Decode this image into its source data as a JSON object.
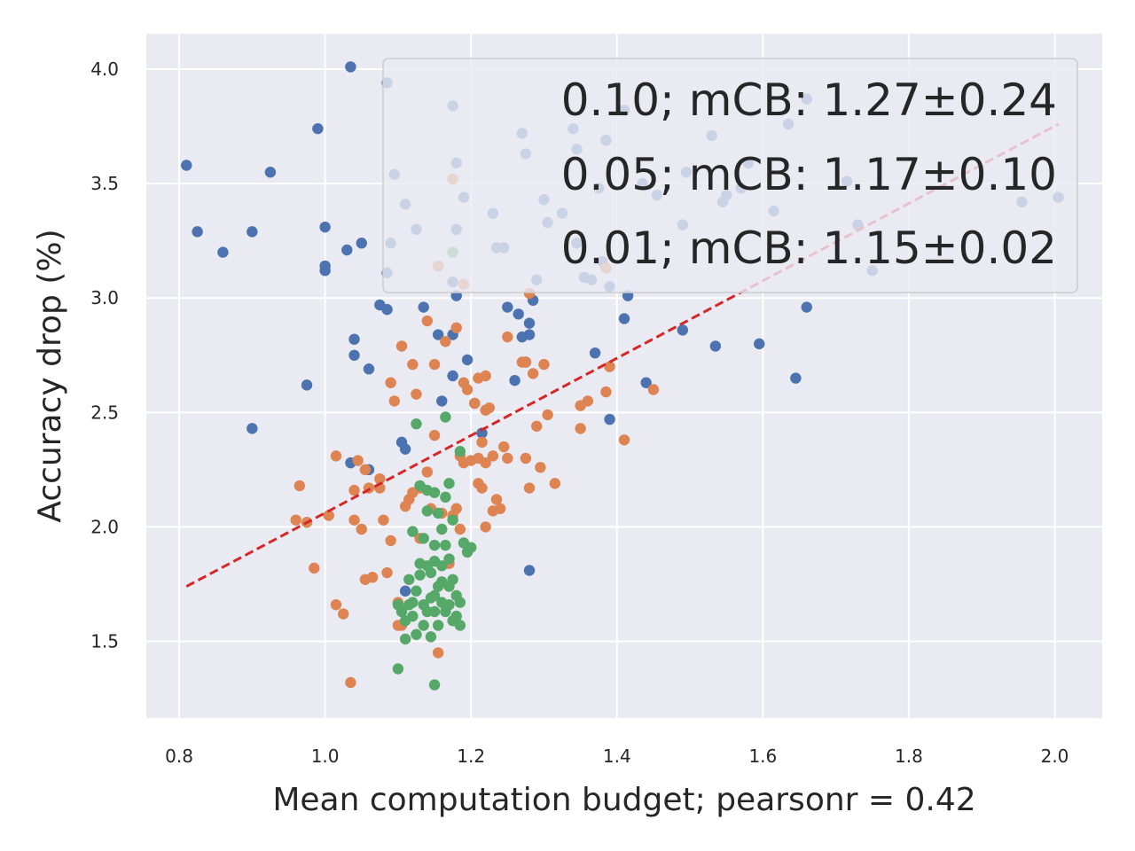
{
  "chart_data": {
    "type": "scatter",
    "xlabel": "Mean computation budget; pearsonr = 0.42",
    "ylabel": "Accuracy drop (%)",
    "xlim": [
      0.755,
      2.065
    ],
    "ylim": [
      1.165,
      4.155
    ],
    "x_ticks": [
      0.8,
      1.0,
      1.2,
      1.4,
      1.6,
      1.8,
      2.0
    ],
    "x_tick_labels": [
      "0.8",
      "1.0",
      "1.2",
      "1.4",
      "1.6",
      "1.8",
      "2.0"
    ],
    "y_ticks": [
      1.5,
      2.0,
      2.5,
      3.0,
      3.5,
      4.0
    ],
    "y_tick_labels": [
      "1.5",
      "2.0",
      "2.5",
      "3.0",
      "3.5",
      "4.0"
    ],
    "grid": true,
    "legend": {
      "placement": "top-right",
      "entries": [
        "0.10; mCB: 1.27±0.24",
        "0.05; mCB: 1.17±0.10",
        "0.01; mCB: 1.15±0.02"
      ]
    },
    "trendline": {
      "x": [
        0.81,
        2.005
      ],
      "y": [
        1.74,
        3.76
      ],
      "color": "#d62728"
    },
    "series": [
      {
        "name": "0.10; mCB: 1.27±0.24",
        "color": "#4c72b0",
        "points": [
          [
            0.81,
            3.58
          ],
          [
            0.825,
            3.29
          ],
          [
            0.86,
            3.2
          ],
          [
            0.9,
            3.29
          ],
          [
            0.925,
            3.55
          ],
          [
            0.9,
            2.43
          ],
          [
            0.975,
            2.62
          ],
          [
            0.99,
            3.74
          ],
          [
            1.0,
            3.12
          ],
          [
            1.0,
            3.14
          ],
          [
            1.0,
            3.31
          ],
          [
            1.03,
            3.21
          ],
          [
            1.035,
            4.01
          ],
          [
            1.05,
            3.24
          ],
          [
            1.04,
            2.82
          ],
          [
            1.04,
            2.75
          ],
          [
            1.035,
            2.28
          ],
          [
            1.06,
            2.69
          ],
          [
            1.06,
            2.25
          ],
          [
            1.075,
            2.97
          ],
          [
            1.085,
            2.95
          ],
          [
            1.085,
            3.94
          ],
          [
            1.09,
            3.24
          ],
          [
            1.085,
            3.11
          ],
          [
            1.095,
            3.54
          ],
          [
            1.105,
            2.37
          ],
          [
            1.11,
            2.34
          ],
          [
            1.11,
            3.41
          ],
          [
            1.125,
            3.3
          ],
          [
            1.135,
            2.96
          ],
          [
            1.155,
            2.84
          ],
          [
            1.16,
            2.55
          ],
          [
            1.155,
            3.14
          ],
          [
            1.175,
            2.66
          ],
          [
            1.175,
            3.07
          ],
          [
            1.175,
            2.84
          ],
          [
            1.175,
            3.84
          ],
          [
            1.18,
            3.01
          ],
          [
            1.18,
            3.59
          ],
          [
            1.18,
            3.3
          ],
          [
            1.19,
            3.44
          ],
          [
            1.195,
            2.73
          ],
          [
            1.205,
            2.54
          ],
          [
            1.215,
            2.41
          ],
          [
            1.11,
            1.72
          ],
          [
            1.23,
            3.37
          ],
          [
            1.235,
            3.22
          ],
          [
            1.245,
            3.22
          ],
          [
            1.25,
            2.96
          ],
          [
            1.26,
            2.64
          ],
          [
            1.265,
            2.93
          ],
          [
            1.27,
            2.83
          ],
          [
            1.27,
            3.72
          ],
          [
            1.275,
            2.72
          ],
          [
            1.275,
            3.63
          ],
          [
            1.28,
            2.84
          ],
          [
            1.28,
            2.89
          ],
          [
            1.285,
            2.99
          ],
          [
            1.29,
            3.08
          ],
          [
            1.3,
            3.43
          ],
          [
            1.305,
            3.33
          ],
          [
            1.325,
            3.37
          ],
          [
            1.34,
            3.74
          ],
          [
            1.345,
            3.65
          ],
          [
            1.345,
            3.24
          ],
          [
            1.355,
            3.09
          ],
          [
            1.365,
            3.08
          ],
          [
            1.37,
            2.76
          ],
          [
            1.375,
            3.48
          ],
          [
            1.38,
            3.16
          ],
          [
            1.385,
            3.69
          ],
          [
            1.39,
            3.05
          ],
          [
            1.39,
            2.47
          ],
          [
            1.41,
            2.91
          ],
          [
            1.41,
            3.82
          ],
          [
            1.415,
            3.01
          ],
          [
            1.435,
            3.5
          ],
          [
            1.44,
            2.63
          ],
          [
            1.455,
            3.45
          ],
          [
            1.49,
            3.32
          ],
          [
            1.49,
            2.86
          ],
          [
            1.495,
            3.55
          ],
          [
            1.53,
            3.71
          ],
          [
            1.535,
            2.79
          ],
          [
            1.545,
            3.42
          ],
          [
            1.55,
            3.45
          ],
          [
            1.57,
            3.48
          ],
          [
            1.58,
            3.59
          ],
          [
            1.595,
            2.8
          ],
          [
            1.615,
            3.38
          ],
          [
            1.635,
            3.76
          ],
          [
            1.645,
            2.65
          ],
          [
            1.66,
            2.96
          ],
          [
            1.66,
            3.87
          ],
          [
            1.715,
            3.51
          ],
          [
            1.73,
            3.32
          ],
          [
            1.75,
            3.12
          ],
          [
            1.955,
            3.42
          ],
          [
            2.005,
            3.44
          ],
          [
            1.28,
            1.81
          ]
        ]
      },
      {
        "name": "0.05; mCB: 1.17±0.10",
        "color": "#dd8452",
        "points": [
          [
            0.96,
            2.03
          ],
          [
            0.965,
            2.18
          ],
          [
            0.975,
            2.02
          ],
          [
            0.985,
            1.82
          ],
          [
            1.005,
            2.05
          ],
          [
            1.015,
            1.66
          ],
          [
            1.015,
            2.31
          ],
          [
            1.025,
            1.62
          ],
          [
            1.035,
            1.32
          ],
          [
            1.04,
            2.16
          ],
          [
            1.04,
            2.03
          ],
          [
            1.045,
            2.29
          ],
          [
            1.05,
            1.99
          ],
          [
            1.055,
            2.25
          ],
          [
            1.055,
            1.77
          ],
          [
            1.06,
            2.17
          ],
          [
            1.065,
            1.78
          ],
          [
            1.075,
            2.17
          ],
          [
            1.075,
            2.21
          ],
          [
            1.08,
            2.03
          ],
          [
            1.085,
            1.8
          ],
          [
            1.09,
            1.94
          ],
          [
            1.09,
            2.63
          ],
          [
            1.095,
            2.55
          ],
          [
            1.1,
            1.57
          ],
          [
            1.1,
            1.67
          ],
          [
            1.105,
            2.79
          ],
          [
            1.105,
            1.57
          ],
          [
            1.11,
            2.09
          ],
          [
            1.115,
            2.12
          ],
          [
            1.12,
            2.71
          ],
          [
            1.12,
            2.15
          ],
          [
            1.125,
            2.58
          ],
          [
            1.13,
            1.95
          ],
          [
            1.13,
            2.17
          ],
          [
            1.14,
            2.9
          ],
          [
            1.14,
            2.24
          ],
          [
            1.145,
            2.08
          ],
          [
            1.15,
            2.71
          ],
          [
            1.15,
            2.4
          ],
          [
            1.155,
            3.14
          ],
          [
            1.155,
            1.45
          ],
          [
            1.16,
            2.06
          ],
          [
            1.165,
            2.81
          ],
          [
            1.17,
            1.84
          ],
          [
            1.175,
            3.52
          ],
          [
            1.175,
            2.05
          ],
          [
            1.18,
            2.87
          ],
          [
            1.18,
            2.08
          ],
          [
            1.185,
            2.31
          ],
          [
            1.185,
            1.99
          ],
          [
            1.19,
            3.06
          ],
          [
            1.19,
            2.63
          ],
          [
            1.19,
            2.28
          ],
          [
            1.195,
            2.6
          ],
          [
            1.2,
            2.29
          ],
          [
            1.205,
            2.54
          ],
          [
            1.21,
            2.65
          ],
          [
            1.21,
            2.3
          ],
          [
            1.21,
            2.19
          ],
          [
            1.215,
            2.37
          ],
          [
            1.215,
            2.17
          ],
          [
            1.22,
            2.66
          ],
          [
            1.22,
            2.51
          ],
          [
            1.22,
            2.28
          ],
          [
            1.22,
            2.0
          ],
          [
            1.225,
            2.52
          ],
          [
            1.23,
            2.31
          ],
          [
            1.23,
            2.07
          ],
          [
            1.235,
            2.12
          ],
          [
            1.24,
            2.08
          ],
          [
            1.245,
            2.35
          ],
          [
            1.25,
            2.83
          ],
          [
            1.25,
            2.3
          ],
          [
            1.27,
            2.72
          ],
          [
            1.275,
            2.3
          ],
          [
            1.275,
            2.72
          ],
          [
            1.28,
            2.17
          ],
          [
            1.28,
            3.02
          ],
          [
            1.285,
            2.67
          ],
          [
            1.29,
            2.44
          ],
          [
            1.295,
            2.26
          ],
          [
            1.3,
            2.71
          ],
          [
            1.305,
            2.49
          ],
          [
            1.315,
            2.19
          ],
          [
            1.35,
            2.53
          ],
          [
            1.35,
            2.43
          ],
          [
            1.36,
            2.55
          ],
          [
            1.385,
            2.59
          ],
          [
            1.39,
            2.7
          ],
          [
            1.41,
            2.38
          ],
          [
            1.385,
            3.13
          ],
          [
            1.45,
            2.6
          ]
        ]
      },
      {
        "name": "0.01; mCB: 1.15±0.02",
        "color": "#55a868",
        "points": [
          [
            1.1,
            1.38
          ],
          [
            1.15,
            1.31
          ],
          [
            1.1,
            1.66
          ],
          [
            1.105,
            1.63
          ],
          [
            1.11,
            1.59
          ],
          [
            1.11,
            1.51
          ],
          [
            1.115,
            1.66
          ],
          [
            1.115,
            1.77
          ],
          [
            1.12,
            1.67
          ],
          [
            1.12,
            1.98
          ],
          [
            1.12,
            1.61
          ],
          [
            1.125,
            1.53
          ],
          [
            1.125,
            2.45
          ],
          [
            1.13,
            1.84
          ],
          [
            1.13,
            1.79
          ],
          [
            1.13,
            2.18
          ],
          [
            1.135,
            1.57
          ],
          [
            1.135,
            1.66
          ],
          [
            1.14,
            2.16
          ],
          [
            1.14,
            1.83
          ],
          [
            1.14,
            2.07
          ],
          [
            1.14,
            1.63
          ],
          [
            1.145,
            1.69
          ],
          [
            1.145,
            1.52
          ],
          [
            1.145,
            1.8
          ],
          [
            1.15,
            2.15
          ],
          [
            1.15,
            1.85
          ],
          [
            1.15,
            1.63
          ],
          [
            1.15,
            1.92
          ],
          [
            1.155,
            2.06
          ],
          [
            1.155,
            1.74
          ],
          [
            1.155,
            1.57
          ],
          [
            1.16,
            1.99
          ],
          [
            1.16,
            1.67
          ],
          [
            1.16,
            1.83
          ],
          [
            1.165,
            2.48
          ],
          [
            1.165,
            2.13
          ],
          [
            1.165,
            1.92
          ],
          [
            1.165,
            1.63
          ],
          [
            1.17,
            2.19
          ],
          [
            1.17,
            1.74
          ],
          [
            1.17,
            1.86
          ],
          [
            1.17,
            1.66
          ],
          [
            1.175,
            3.2
          ],
          [
            1.175,
            2.03
          ],
          [
            1.175,
            1.59
          ],
          [
            1.175,
            1.77
          ],
          [
            1.18,
            1.7
          ],
          [
            1.18,
            1.61
          ],
          [
            1.185,
            2.33
          ],
          [
            1.185,
            1.57
          ],
          [
            1.185,
            1.67
          ],
          [
            1.19,
            1.93
          ],
          [
            1.195,
            1.89
          ],
          [
            1.2,
            1.91
          ],
          [
            1.15,
            1.7
          ],
          [
            1.16,
            1.76
          ],
          [
            1.135,
            1.95
          ],
          [
            1.125,
            1.72
          ]
        ]
      }
    ]
  }
}
